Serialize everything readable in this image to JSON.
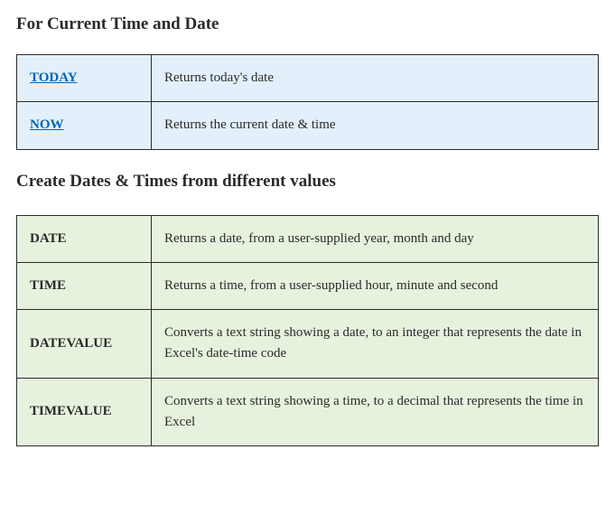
{
  "section1": {
    "title": "For Current Time and Date",
    "bg_color": "#e3f0fb",
    "border_color": "#9ab7c9",
    "link_color": "#0066b3",
    "rows": [
      {
        "name": "TODAY",
        "is_link": true,
        "desc": "Returns today's date"
      },
      {
        "name": "NOW",
        "is_link": true,
        "desc": "Returns the current date & time"
      }
    ]
  },
  "section2": {
    "title": "Create Dates & Times from different values",
    "bg_color": "#e6f2de",
    "border_color": "#a9c49a",
    "rows": [
      {
        "name": "DATE",
        "desc": "Returns a date, from a user-supplied year, month and day"
      },
      {
        "name": "TIME",
        "desc": "Returns a time, from a user-supplied hour, minute and second"
      },
      {
        "name": "DATEVALUE",
        "desc": "Converts a text string showing a date, to an integer that represents the   date in Excel's date-time code"
      },
      {
        "name": "TIMEVALUE",
        "desc": "Converts a text string showing a time, to a decimal that represents the time in Excel"
      }
    ]
  }
}
